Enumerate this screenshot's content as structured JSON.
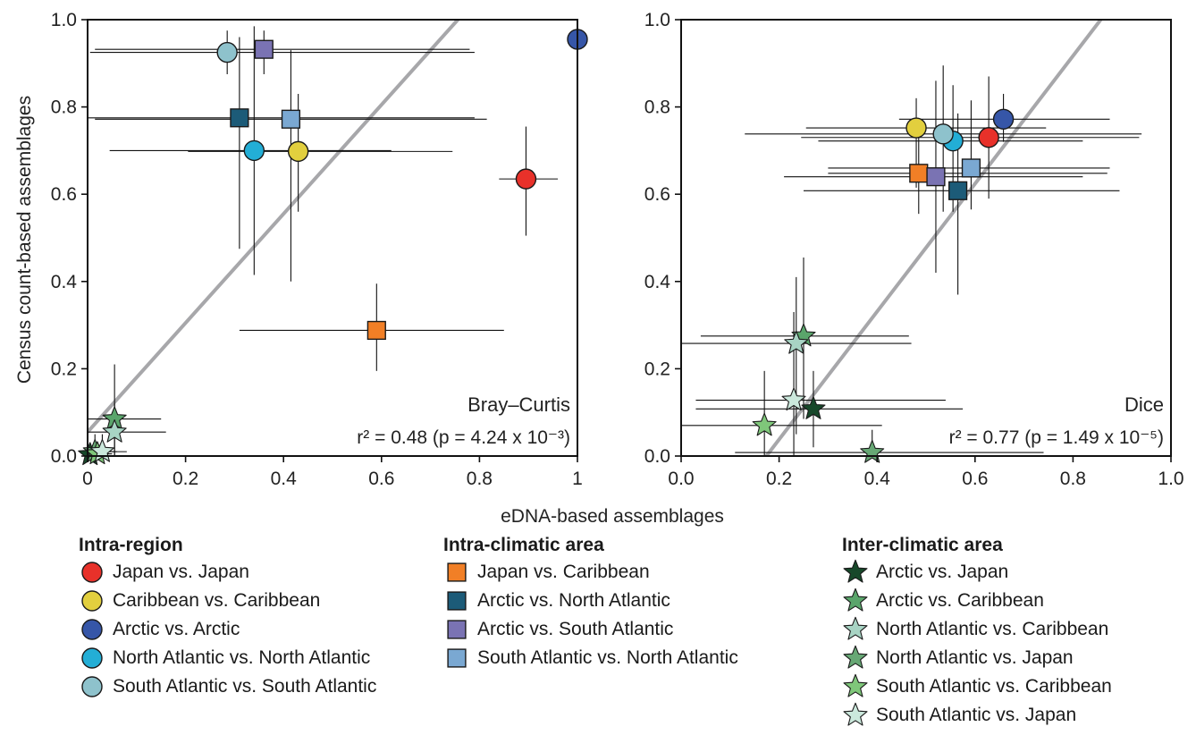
{
  "colors": {
    "japan_vs_japan": "#e8312a",
    "caribbean_vs_caribbean": "#e2cf3e",
    "arctic_vs_arctic": "#3656a8",
    "north_atlantic_vs_north_atlantic": "#23aed6",
    "south_atlantic_vs_south_atlantic": "#8ec2cc",
    "japan_vs_caribbean": "#f17f26",
    "arctic_vs_north_atlantic": "#1c5b78",
    "arctic_vs_south_atlantic": "#7a73b3",
    "south_atlantic_vs_north_atlantic": "#7aa8d2",
    "arctic_vs_japan": "#17482a",
    "arctic_vs_caribbean": "#5aa56b",
    "north_atlantic_vs_caribbean": "#a8d4c4",
    "north_atlantic_vs_japan": "#67a875",
    "south_atlantic_vs_caribbean": "#7fc77a",
    "south_atlantic_vs_japan": "#cbe8dc",
    "regression_line": "#a7a7aa"
  },
  "shared_xlabel": "eDNA-based assemblages",
  "legend": {
    "groups": [
      {
        "title": "Intra-region",
        "items": [
          {
            "label": "Japan vs. Japan",
            "marker": "circle",
            "color_key": "japan_vs_japan"
          },
          {
            "label": "Caribbean vs. Caribbean",
            "marker": "circle",
            "color_key": "caribbean_vs_caribbean"
          },
          {
            "label": "Arctic vs. Arctic",
            "marker": "circle",
            "color_key": "arctic_vs_arctic"
          },
          {
            "label": "North Atlantic vs. North Atlantic",
            "marker": "circle",
            "color_key": "north_atlantic_vs_north_atlantic"
          },
          {
            "label": "South Atlantic vs. South Atlantic",
            "marker": "circle",
            "color_key": "south_atlantic_vs_south_atlantic"
          }
        ]
      },
      {
        "title": "Intra-climatic area",
        "items": [
          {
            "label": "Japan vs. Caribbean",
            "marker": "square",
            "color_key": "japan_vs_caribbean"
          },
          {
            "label": "Arctic vs. North Atlantic",
            "marker": "square",
            "color_key": "arctic_vs_north_atlantic"
          },
          {
            "label": "Arctic vs. South Atlantic",
            "marker": "square",
            "color_key": "arctic_vs_south_atlantic"
          },
          {
            "label": "South Atlantic vs. North Atlantic",
            "marker": "square",
            "color_key": "south_atlantic_vs_north_atlantic"
          }
        ]
      },
      {
        "title": "Inter-climatic area",
        "items": [
          {
            "label": "Arctic vs. Japan",
            "marker": "star",
            "color_key": "arctic_vs_japan"
          },
          {
            "label": "Arctic vs. Caribbean",
            "marker": "star",
            "color_key": "arctic_vs_caribbean"
          },
          {
            "label": "North Atlantic vs. Caribbean",
            "marker": "star",
            "color_key": "north_atlantic_vs_caribbean"
          },
          {
            "label": "North Atlantic vs. Japan",
            "marker": "star",
            "color_key": "north_atlantic_vs_japan"
          },
          {
            "label": "South Atlantic vs. Caribbean",
            "marker": "star",
            "color_key": "south_atlantic_vs_caribbean"
          },
          {
            "label": "South Atlantic vs. Japan",
            "marker": "star",
            "color_key": "south_atlantic_vs_japan"
          }
        ]
      }
    ]
  },
  "chart_data": [
    {
      "type": "scatter",
      "panel_label": "Bray–Curtis",
      "stat_text": "r² = 0.48 (p = 4.24 x 10⁻³)",
      "xlabel": "",
      "ylabel": "Census count-based assemblages",
      "xlim": [
        0,
        1
      ],
      "ylim": [
        0,
        1
      ],
      "xticks": [
        "0",
        "0.2",
        "0.4",
        "0.6",
        "0.8",
        "1"
      ],
      "yticks": [
        "0.0",
        "0.2",
        "0.4",
        "0.6",
        "0.8",
        "1.0"
      ],
      "grid": false,
      "regression": {
        "intercept": 0.055,
        "slope": 1.25
      },
      "points": [
        {
          "series": "japan_vs_japan",
          "marker": "circle",
          "x": 0.895,
          "y": 0.635,
          "x_err": [
            0.84,
            0.96
          ],
          "y_err": [
            0.505,
            0.755
          ]
        },
        {
          "series": "caribbean_vs_caribbean",
          "marker": "circle",
          "x": 0.43,
          "y": 0.698,
          "x_err": [
            0.205,
            0.745
          ],
          "y_err": [
            0.56,
            0.83
          ]
        },
        {
          "series": "arctic_vs_arctic",
          "marker": "circle",
          "x": 1.0,
          "y": 0.955,
          "x_err": [
            0.99,
            1.0
          ],
          "y_err": [
            0.9,
            1.0
          ]
        },
        {
          "series": "north_atlantic_vs_north_atlantic",
          "marker": "circle",
          "x": 0.34,
          "y": 0.7,
          "x_err": [
            0.045,
            0.62
          ],
          "y_err": [
            0.415,
            0.985
          ]
        },
        {
          "series": "south_atlantic_vs_south_atlantic",
          "marker": "circle",
          "x": 0.285,
          "y": 0.925,
          "x_err": [
            0.005,
            0.79
          ],
          "y_err": [
            0.875,
            0.975
          ]
        },
        {
          "series": "japan_vs_caribbean",
          "marker": "square",
          "x": 0.59,
          "y": 0.288,
          "x_err": [
            0.31,
            0.85
          ],
          "y_err": [
            0.195,
            0.395
          ]
        },
        {
          "series": "arctic_vs_north_atlantic",
          "marker": "square",
          "x": 0.31,
          "y": 0.775,
          "x_err": [
            0.0,
            0.79
          ],
          "y_err": [
            0.475,
            0.96
          ]
        },
        {
          "series": "arctic_vs_south_atlantic",
          "marker": "square",
          "x": 0.36,
          "y": 0.932,
          "x_err": [
            0.015,
            0.78
          ],
          "y_err": [
            0.875,
            0.975
          ]
        },
        {
          "series": "south_atlantic_vs_north_atlantic",
          "marker": "square",
          "x": 0.415,
          "y": 0.772,
          "x_err": [
            0.015,
            0.815
          ],
          "y_err": [
            0.4,
            0.93
          ]
        },
        {
          "series": "arctic_vs_japan",
          "marker": "star",
          "x": 0.005,
          "y": 0.003,
          "x_err": [
            0.0,
            0.03
          ],
          "y_err": [
            0.0,
            0.02
          ]
        },
        {
          "series": "arctic_vs_caribbean",
          "marker": "star",
          "x": 0.055,
          "y": 0.085,
          "x_err": [
            0.0,
            0.15
          ],
          "y_err": [
            0.0,
            0.21
          ]
        },
        {
          "series": "north_atlantic_vs_caribbean",
          "marker": "star",
          "x": 0.055,
          "y": 0.055,
          "x_err": [
            0.0,
            0.16
          ],
          "y_err": [
            0.0,
            0.12
          ]
        },
        {
          "series": "north_atlantic_vs_japan",
          "marker": "star",
          "x": 0.015,
          "y": 0.01,
          "x_err": [
            0.0,
            0.06
          ],
          "y_err": [
            0.0,
            0.05
          ]
        },
        {
          "series": "south_atlantic_vs_caribbean",
          "marker": "star",
          "x": 0.02,
          "y": 0.005,
          "x_err": [
            0.0,
            0.05
          ],
          "y_err": [
            0.0,
            0.03
          ]
        },
        {
          "series": "south_atlantic_vs_japan",
          "marker": "star",
          "x": 0.03,
          "y": 0.01,
          "x_err": [
            0.0,
            0.08
          ],
          "y_err": [
            0.0,
            0.05
          ]
        }
      ]
    },
    {
      "type": "scatter",
      "panel_label": "Dice",
      "stat_text": "r² = 0.77 (p = 1.49 x 10⁻⁵)",
      "xlabel": "",
      "ylabel": "",
      "xlim": [
        0,
        1
      ],
      "ylim": [
        0,
        1
      ],
      "xticks": [
        "0.0",
        "0.2",
        "0.4",
        "0.6",
        "0.8",
        "1.0"
      ],
      "yticks": [
        "0.0",
        "0.2",
        "0.4",
        "0.6",
        "0.8",
        "1.0"
      ],
      "grid": false,
      "regression": {
        "intercept": -0.255,
        "slope": 1.465
      },
      "points": [
        {
          "series": "japan_vs_japan",
          "marker": "circle",
          "x": 0.628,
          "y": 0.73,
          "x_err": [
            0.245,
            0.935
          ],
          "y_err": [
            0.59,
            0.87
          ]
        },
        {
          "series": "caribbean_vs_caribbean",
          "marker": "circle",
          "x": 0.48,
          "y": 0.752,
          "x_err": [
            0.255,
            0.745
          ],
          "y_err": [
            0.615,
            0.82
          ]
        },
        {
          "series": "arctic_vs_arctic",
          "marker": "circle",
          "x": 0.658,
          "y": 0.772,
          "x_err": [
            0.445,
            0.875
          ],
          "y_err": [
            0.72,
            0.83
          ]
        },
        {
          "series": "north_atlantic_vs_north_atlantic",
          "marker": "circle",
          "x": 0.555,
          "y": 0.722,
          "x_err": [
            0.28,
            0.82
          ],
          "y_err": [
            0.56,
            0.85
          ]
        },
        {
          "series": "south_atlantic_vs_south_atlantic",
          "marker": "circle",
          "x": 0.535,
          "y": 0.738,
          "x_err": [
            0.13,
            0.94
          ],
          "y_err": [
            0.56,
            0.895
          ]
        },
        {
          "series": "japan_vs_caribbean",
          "marker": "square",
          "x": 0.485,
          "y": 0.648,
          "x_err": [
            0.3,
            0.87
          ],
          "y_err": [
            0.555,
            0.755
          ]
        },
        {
          "series": "arctic_vs_north_atlantic",
          "marker": "square",
          "x": 0.565,
          "y": 0.608,
          "x_err": [
            0.25,
            0.895
          ],
          "y_err": [
            0.37,
            0.785
          ]
        },
        {
          "series": "arctic_vs_south_atlantic",
          "marker": "square",
          "x": 0.52,
          "y": 0.64,
          "x_err": [
            0.21,
            0.82
          ],
          "y_err": [
            0.42,
            0.86
          ]
        },
        {
          "series": "south_atlantic_vs_north_atlantic",
          "marker": "square",
          "x": 0.592,
          "y": 0.66,
          "x_err": [
            0.3,
            0.875
          ],
          "y_err": [
            0.565,
            0.815
          ]
        },
        {
          "series": "arctic_vs_japan",
          "marker": "star",
          "x": 0.27,
          "y": 0.108,
          "x_err": [
            0.03,
            0.575
          ],
          "y_err": [
            0.02,
            0.195
          ]
        },
        {
          "series": "arctic_vs_caribbean",
          "marker": "star",
          "x": 0.25,
          "y": 0.275,
          "x_err": [
            0.04,
            0.465
          ],
          "y_err": [
            0.085,
            0.455
          ]
        },
        {
          "series": "north_atlantic_vs_caribbean",
          "marker": "star",
          "x": 0.235,
          "y": 0.258,
          "x_err": [
            0.0,
            0.47
          ],
          "y_err": [
            0.05,
            0.41
          ]
        },
        {
          "series": "north_atlantic_vs_japan",
          "marker": "star",
          "x": 0.39,
          "y": 0.008,
          "x_err": [
            0.11,
            0.74
          ],
          "y_err": [
            0.0,
            0.06
          ]
        },
        {
          "series": "south_atlantic_vs_caribbean",
          "marker": "star",
          "x": 0.17,
          "y": 0.07,
          "x_err": [
            0.0,
            0.41
          ],
          "y_err": [
            0.0,
            0.195
          ]
        },
        {
          "series": "south_atlantic_vs_japan",
          "marker": "star",
          "x": 0.23,
          "y": 0.128,
          "x_err": [
            0.03,
            0.54
          ],
          "y_err": [
            0.0,
            0.33
          ]
        }
      ]
    }
  ]
}
